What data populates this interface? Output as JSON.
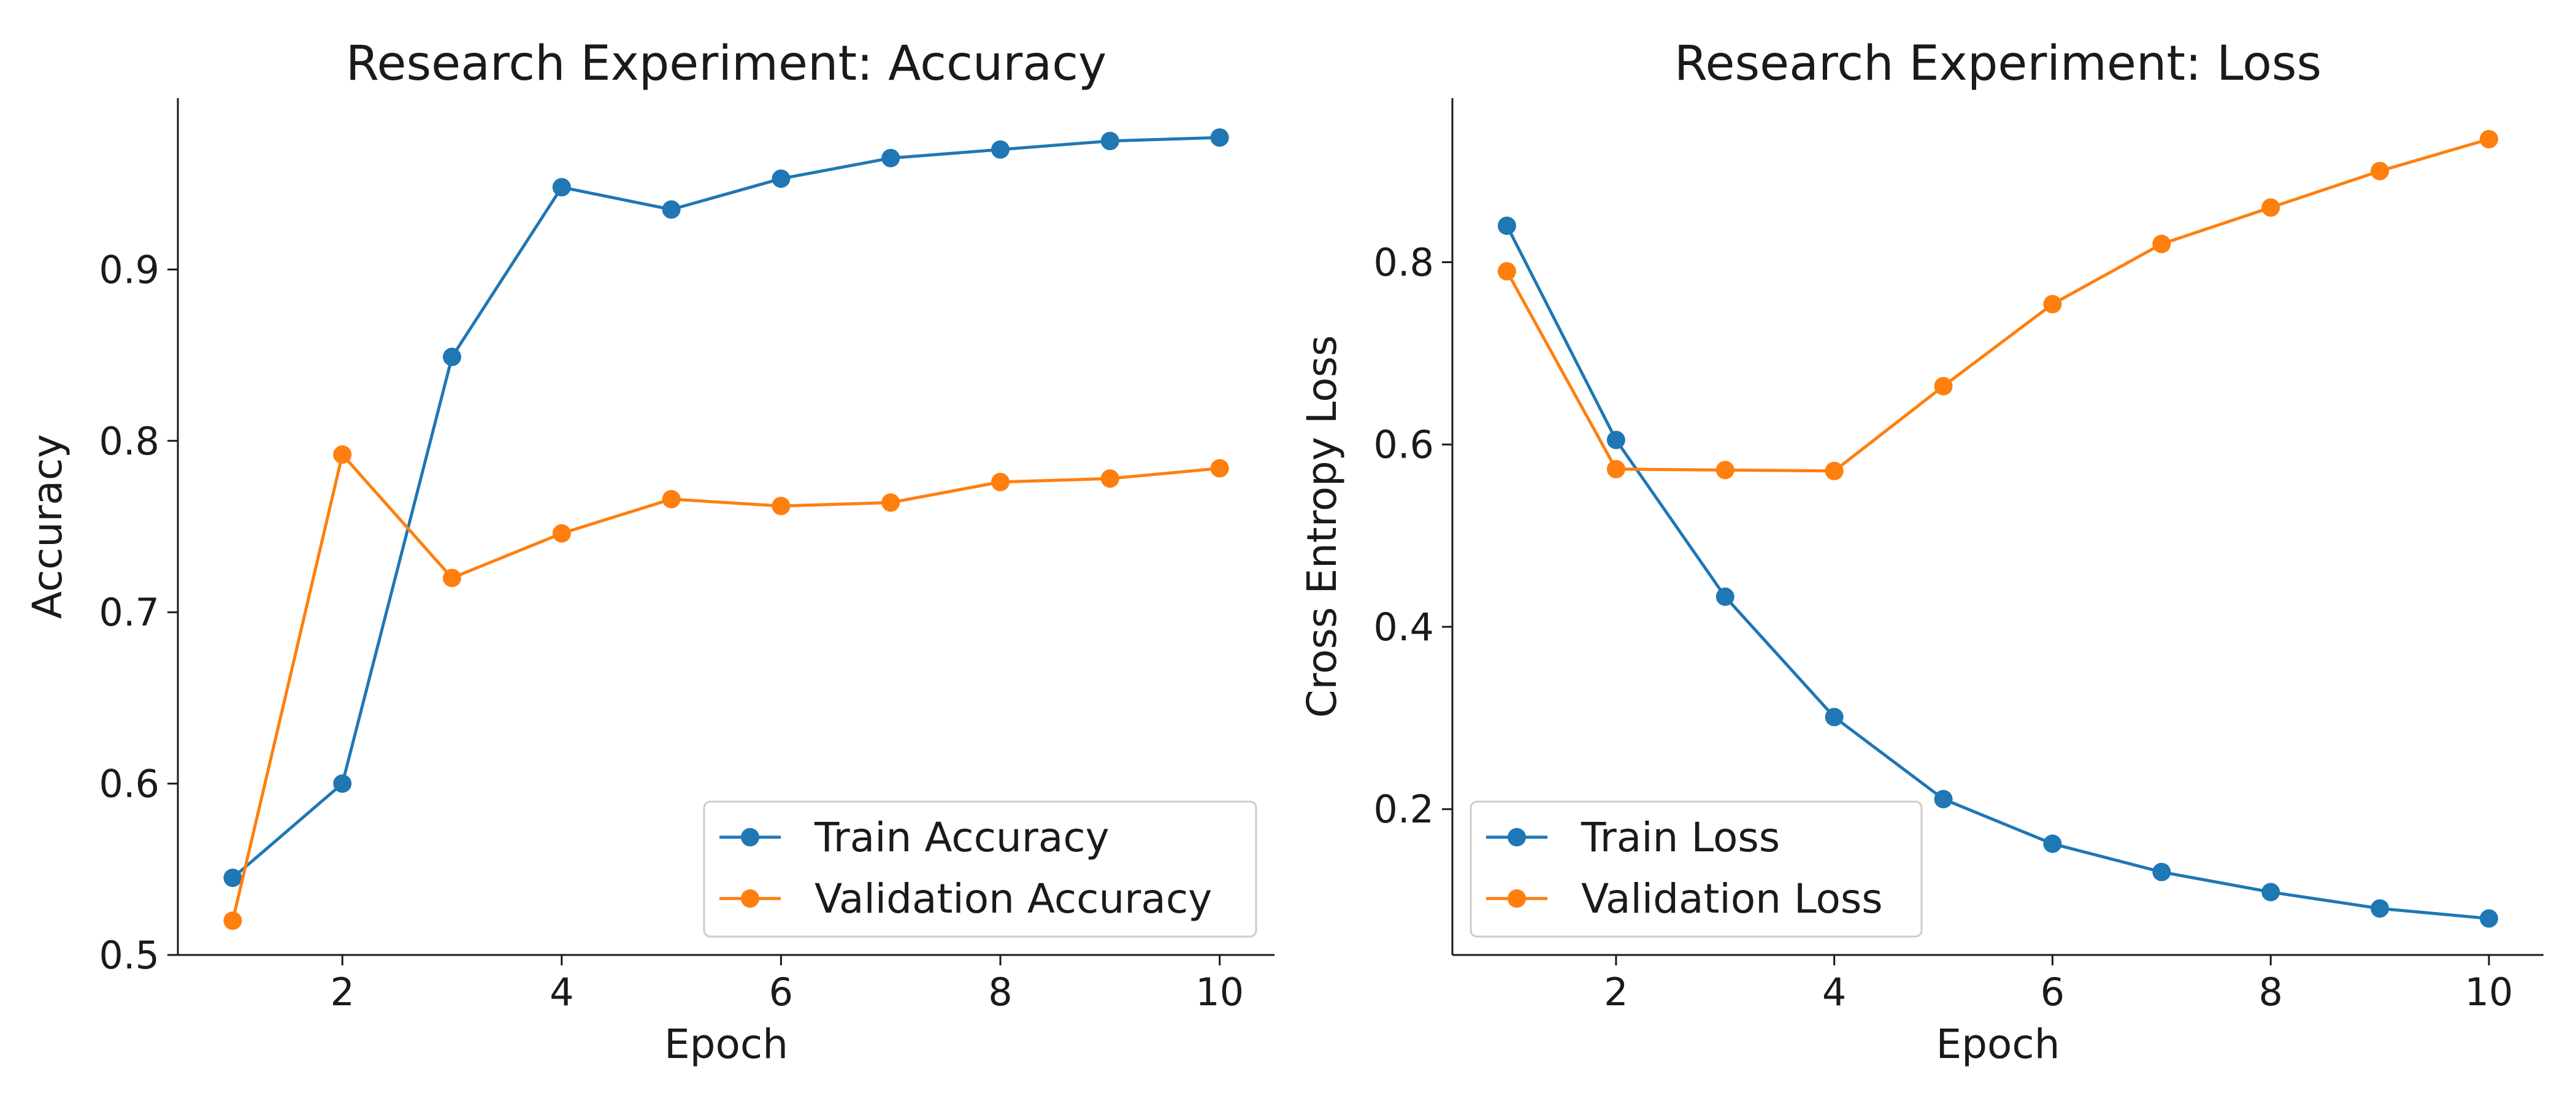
{
  "chart_data": [
    {
      "type": "line",
      "title": "Research Experiment: Accuracy",
      "xlabel": "Epoch",
      "ylabel": "Accuracy",
      "x": [
        1,
        2,
        3,
        4,
        5,
        6,
        7,
        8,
        9,
        10
      ],
      "xlim": [
        0.5,
        10.5
      ],
      "ylim": [
        0.5,
        1.0
      ],
      "xticks": [
        2,
        4,
        6,
        8,
        10
      ],
      "yticks": [
        0.5,
        0.6,
        0.7,
        0.8,
        0.9
      ],
      "grid": false,
      "legend_position": "lower-right",
      "series": [
        {
          "name": "Train Accuracy",
          "color": "#1f77b4",
          "values": [
            0.545,
            0.6,
            0.849,
            0.948,
            0.935,
            0.953,
            0.965,
            0.97,
            0.975,
            0.977
          ]
        },
        {
          "name": "Validation Accuracy",
          "color": "#ff7f0e",
          "values": [
            0.52,
            0.792,
            0.72,
            0.746,
            0.766,
            0.762,
            0.764,
            0.776,
            0.778,
            0.784
          ]
        }
      ]
    },
    {
      "type": "line",
      "title": "Research Experiment: Loss",
      "xlabel": "Epoch",
      "ylabel": "Cross Entropy Loss",
      "x": [
        1,
        2,
        3,
        4,
        5,
        6,
        7,
        8,
        9,
        10
      ],
      "xlim": [
        0.5,
        10.5
      ],
      "ylim": [
        0.04,
        0.98
      ],
      "xticks": [
        2,
        4,
        6,
        8,
        10
      ],
      "yticks": [
        0.2,
        0.4,
        0.6,
        0.8
      ],
      "grid": false,
      "legend_position": "lower-left",
      "series": [
        {
          "name": "Train Loss",
          "color": "#1f77b4",
          "values": [
            0.84,
            0.605,
            0.433,
            0.301,
            0.211,
            0.162,
            0.131,
            0.109,
            0.091,
            0.08
          ]
        },
        {
          "name": "Validation Loss",
          "color": "#ff7f0e",
          "values": [
            0.79,
            0.573,
            0.572,
            0.571,
            0.664,
            0.754,
            0.82,
            0.86,
            0.9,
            0.935
          ]
        }
      ]
    }
  ]
}
